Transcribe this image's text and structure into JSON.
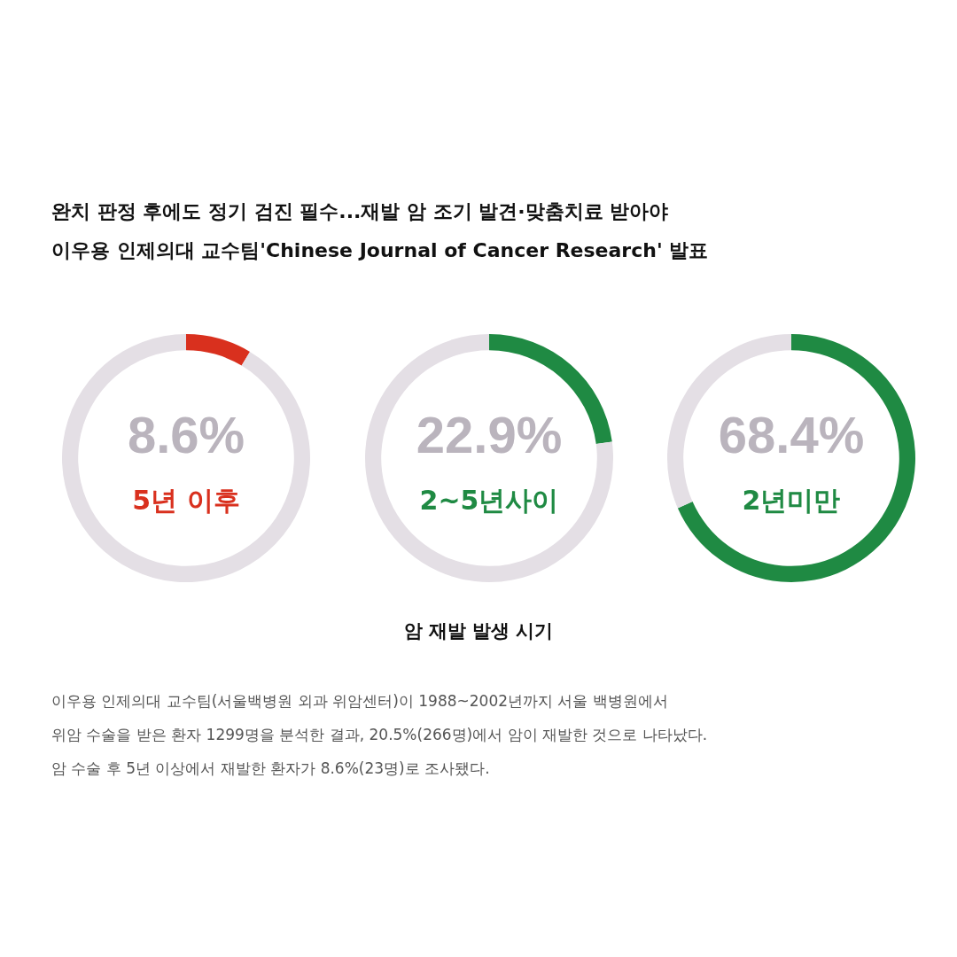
{
  "chart_data": [
    {
      "type": "donut",
      "title": "완치 판정 후에도 정기 검진 필수...재발 암 조기 발견·맞춤치료 받아야",
      "subtitle": "이우용 인제의대 교수팀'Chinese Journal of Cancer Research' 발표",
      "categories": [
        "5년 이후",
        null
      ],
      "values": [
        8.6,
        91.4
      ],
      "colors": [
        "#d9301e",
        "#e4dfe5"
      ],
      "value_labels": [
        "8.6%",
        null
      ]
    },
    {
      "type": "donut",
      "categories": [
        "2~5년사이",
        null
      ],
      "values": [
        22.9,
        77.1
      ],
      "colors": [
        "#1f8a43",
        "#e4dfe5"
      ],
      "value_labels": [
        "22.9%",
        null
      ]
    },
    {
      "type": "donut",
      "categories": [
        "2년미만",
        null
      ],
      "values": [
        68.4,
        31.6
      ],
      "colors": [
        "#1f8a43",
        "#e4dfe5"
      ],
      "value_labels": [
        "68.4%",
        null
      ],
      "annotations": [
        "암 재발 발생 시기",
        "이우용 인제의대 교수팀(서울백병원 외과 위암센터)이 1988~2002년까지 서울 백병원에서",
        "위암 수술을 받은 환자 1299명을 분석한 결과, 20.5%(266명)에서 암이 재발한 것으로 나타났다.",
        "암 수술 후 5년 이상에서 재발한 환자가 8.6%(23명)로 조사됐다."
      ]
    }
  ]
}
